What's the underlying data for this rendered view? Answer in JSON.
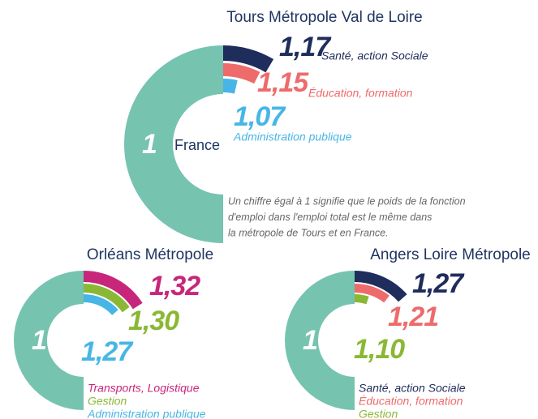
{
  "chart_data": [
    {
      "type": "radial_bar",
      "title": "Tours Métropole Val de Loire",
      "baseline": {
        "label": "France",
        "value": 1,
        "color": "#76c3b0"
      },
      "series": [
        {
          "name": "Santé, action Sociale",
          "color": "#1f2d5c",
          "values": [
            1.17
          ],
          "value_labels": [
            "1,17"
          ]
        },
        {
          "name": "Éducation, formation",
          "color": "#ee6b6b",
          "values": [
            1.15
          ],
          "value_labels": [
            "1,15"
          ]
        },
        {
          "name": "Administration publique",
          "color": "#47b6e6",
          "values": [
            1.07
          ],
          "value_labels": [
            "1,07"
          ]
        }
      ],
      "note": [
        "Un chiffre égal à 1 signifie que le poids de la fonction",
        "d'emploi dans l'emploi total est le même dans",
        "la métropole de Tours et en France."
      ]
    },
    {
      "type": "radial_bar",
      "title": "Orléans Métropole",
      "baseline": {
        "value": 1,
        "color": "#76c3b0"
      },
      "series": [
        {
          "name": "Transports, Logistique",
          "color": "#c8267a",
          "values": [
            1.32
          ],
          "value_labels": [
            "1,32"
          ]
        },
        {
          "name": "Gestion",
          "color": "#8ab834",
          "values": [
            1.3
          ],
          "value_labels": [
            "1,30"
          ]
        },
        {
          "name": "Administration publique",
          "color": "#47b6e6",
          "values": [
            1.27
          ],
          "value_labels": [
            "1,27"
          ]
        }
      ]
    },
    {
      "type": "radial_bar",
      "title": "Angers Loire Métropole",
      "baseline": {
        "value": 1,
        "color": "#76c3b0"
      },
      "series": [
        {
          "name": "Santé, action Sociale",
          "color": "#1f2d5c",
          "values": [
            1.27
          ],
          "value_labels": [
            "1,27"
          ]
        },
        {
          "name": "Éducation, formation",
          "color": "#ee6b6b",
          "values": [
            1.21
          ],
          "value_labels": [
            "1,21"
          ]
        },
        {
          "name": "Gestion",
          "color": "#8ab834",
          "values": [
            1.1
          ],
          "value_labels": [
            "1,10"
          ]
        }
      ]
    }
  ]
}
